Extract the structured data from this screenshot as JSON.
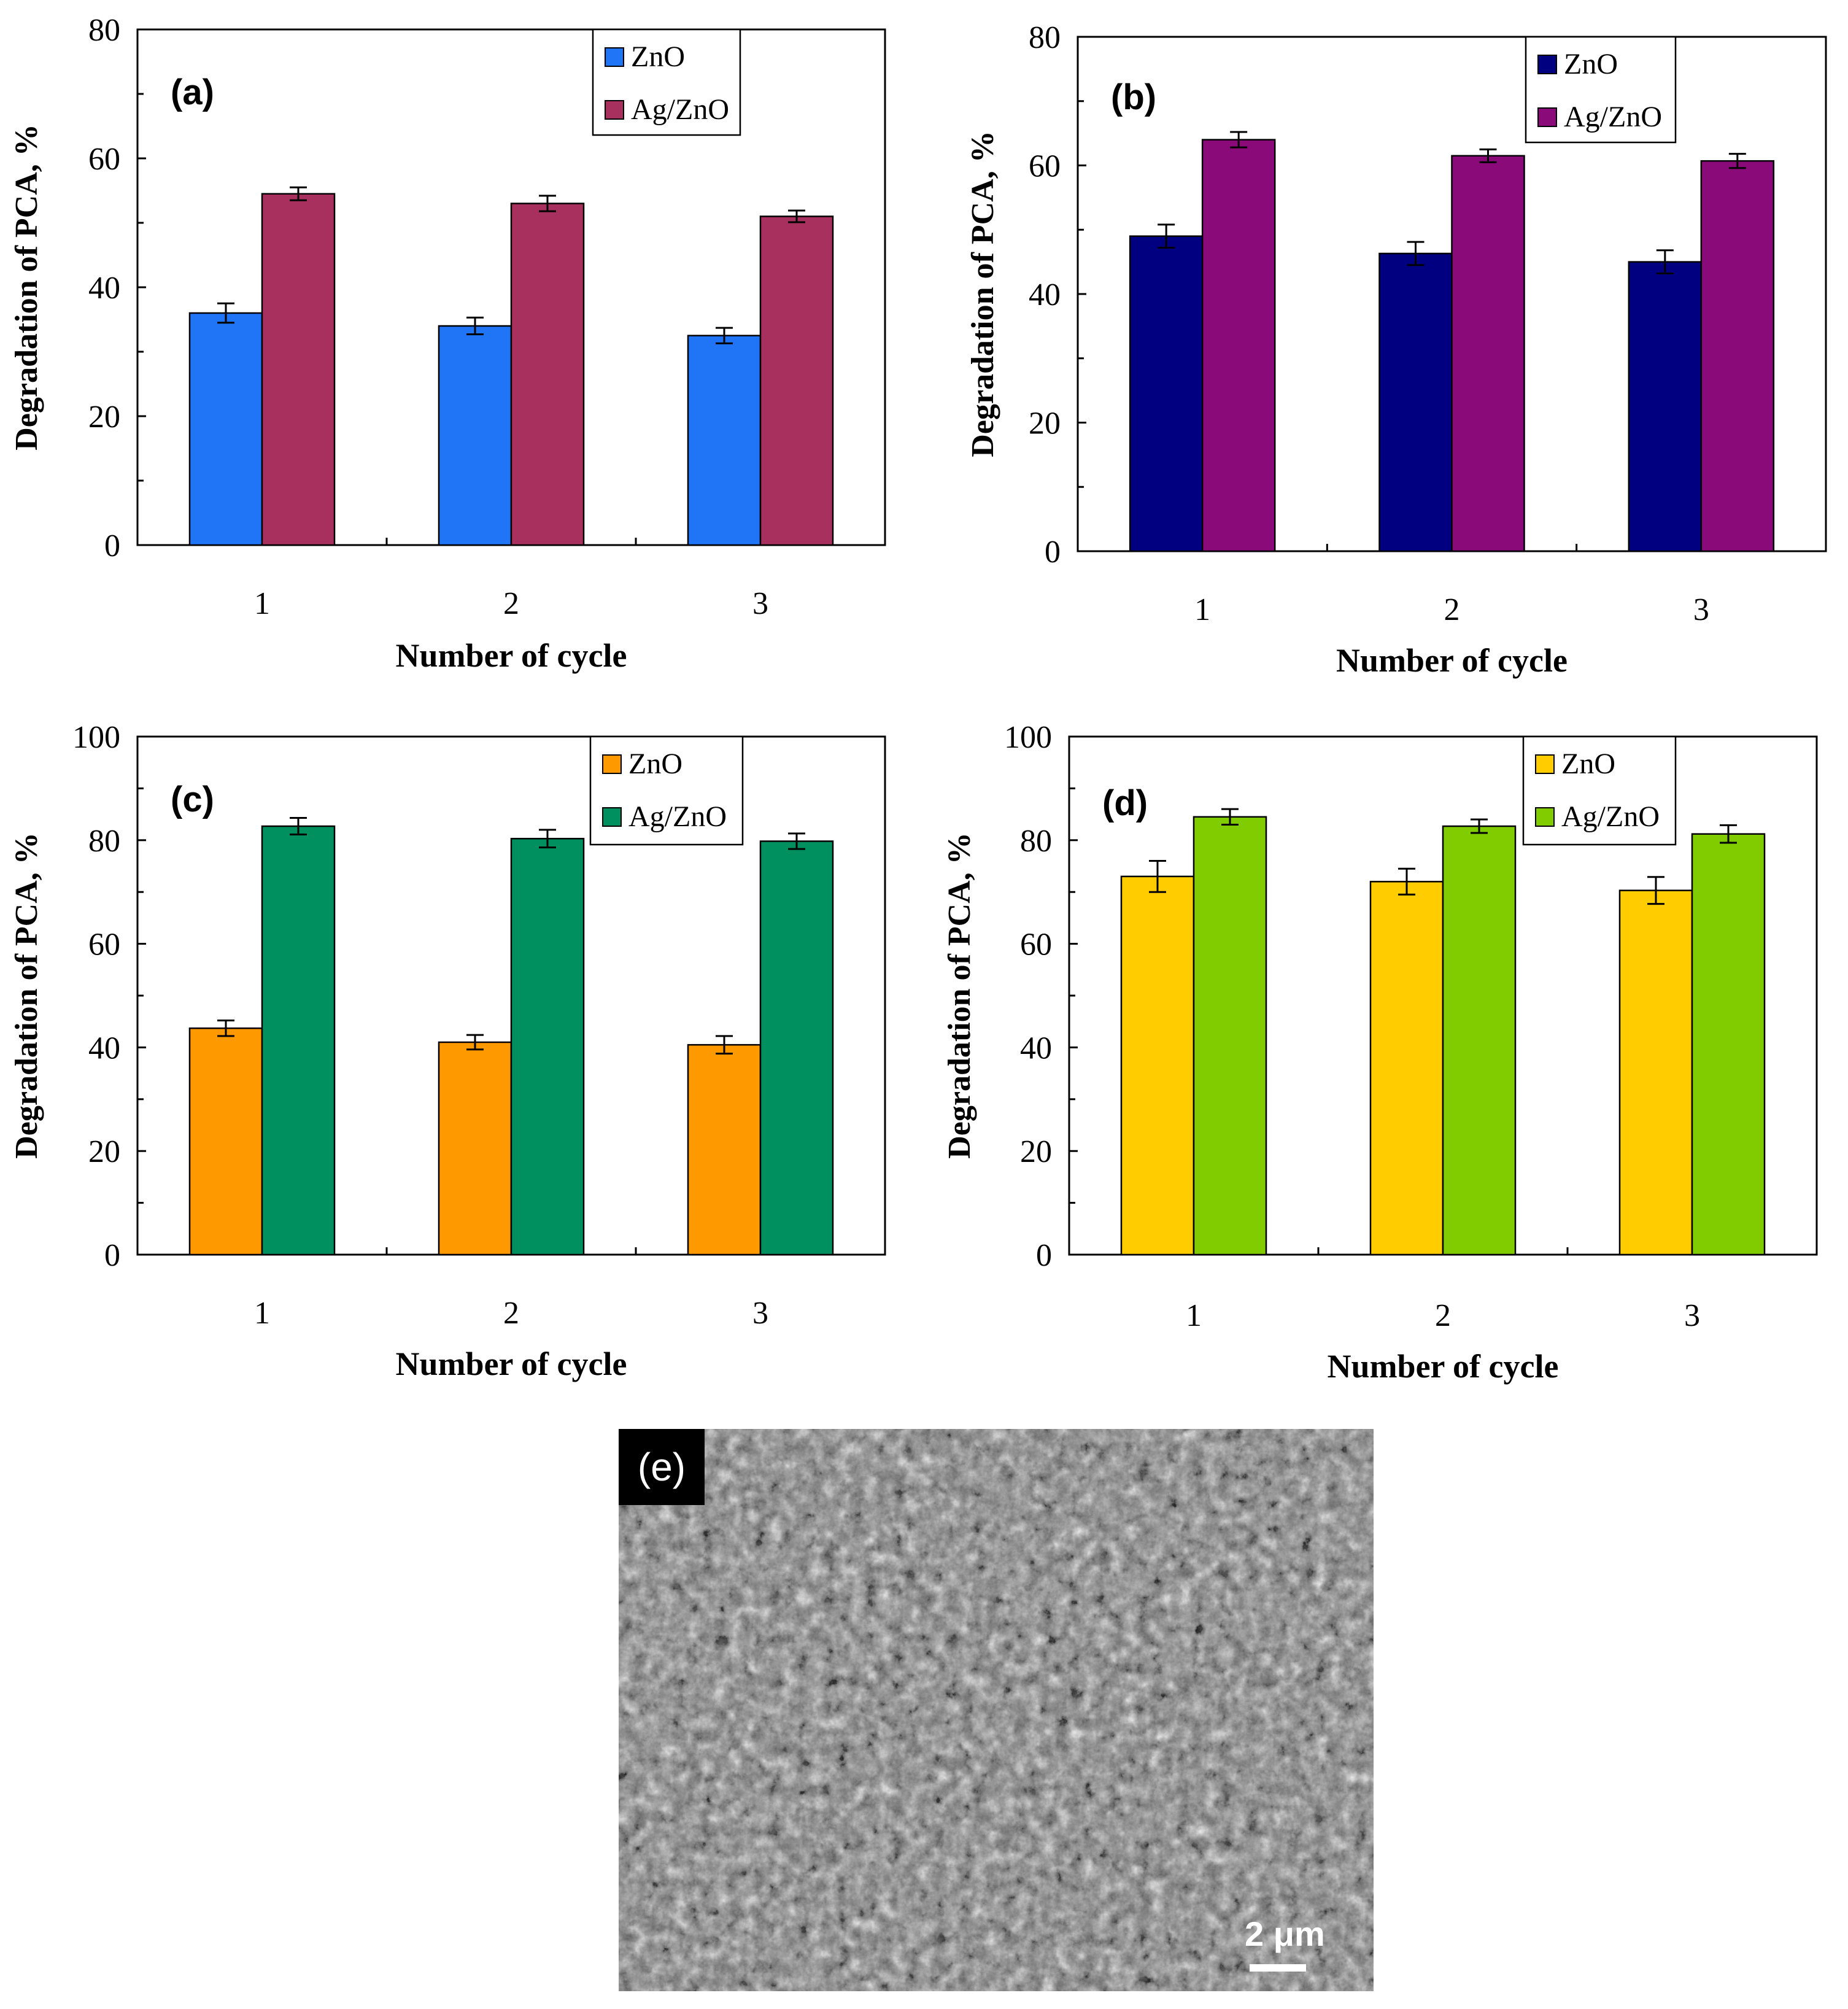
{
  "colors": {
    "a_zno": "#1f75f5",
    "a_agzno": "#a8305f",
    "b_zno": "#000080",
    "b_agzno": "#8b0a7a",
    "c_zno": "#ff9900",
    "c_agzno": "#009060",
    "d_zno": "#ffcc00",
    "d_agzno": "#80cc00"
  },
  "chart_data": [
    {
      "type": "bar",
      "panel_label": "(a)",
      "categories": [
        "1",
        "2",
        "3"
      ],
      "series": [
        {
          "name": "ZnO",
          "values": [
            36,
            34,
            32.5
          ],
          "errors": [
            1.5,
            1.3,
            1.2
          ],
          "color_key": "a_zno"
        },
        {
          "name": "Ag/ZnO",
          "values": [
            54.5,
            53,
            51
          ],
          "errors": [
            1.0,
            1.2,
            0.9
          ],
          "color_key": "a_agzno"
        }
      ],
      "xlabel": "Number of cycle",
      "ylabel": "Degradation of PCA, %",
      "ylim": [
        0,
        80
      ],
      "yticks": [
        "0",
        "20",
        "40",
        "60",
        "80"
      ],
      "legend_position": "top-right"
    },
    {
      "type": "bar",
      "panel_label": "(b)",
      "categories": [
        "1",
        "2",
        "3"
      ],
      "series": [
        {
          "name": "ZnO",
          "values": [
            49,
            46.3,
            45
          ],
          "errors": [
            1.8,
            1.8,
            1.8
          ],
          "color_key": "b_zno"
        },
        {
          "name": "Ag/ZnO",
          "values": [
            64,
            61.5,
            60.7
          ],
          "errors": [
            1.2,
            1.0,
            1.1
          ],
          "color_key": "b_agzno"
        }
      ],
      "xlabel": "Number of cycle",
      "ylabel": "Degradation of PCA, %",
      "ylim": [
        0,
        80
      ],
      "yticks": [
        "0",
        "20",
        "40",
        "60",
        "80"
      ],
      "legend_position": "top-right"
    },
    {
      "type": "bar",
      "panel_label": "(c)",
      "categories": [
        "1",
        "2",
        "3"
      ],
      "series": [
        {
          "name": "ZnO",
          "values": [
            43.7,
            41,
            40.5
          ],
          "errors": [
            1.5,
            1.4,
            1.7
          ],
          "color_key": "c_zno"
        },
        {
          "name": "Ag/ZnO",
          "values": [
            82.7,
            80.3,
            79.8
          ],
          "errors": [
            1.6,
            1.7,
            1.5
          ],
          "color_key": "c_agzno"
        }
      ],
      "xlabel": "Number of cycle",
      "ylabel": "Degradation of PCA, %",
      "ylim": [
        0,
        100
      ],
      "yticks": [
        "0",
        "20",
        "40",
        "60",
        "80",
        "100"
      ],
      "legend_position": "top-right"
    },
    {
      "type": "bar",
      "panel_label": "(d)",
      "categories": [
        "1",
        "2",
        "3"
      ],
      "series": [
        {
          "name": "ZnO",
          "values": [
            73,
            72,
            70.3
          ],
          "errors": [
            3.0,
            2.5,
            2.6
          ],
          "color_key": "d_zno"
        },
        {
          "name": "Ag/ZnO",
          "values": [
            84.5,
            82.7,
            81.2
          ],
          "errors": [
            1.5,
            1.3,
            1.7
          ],
          "color_key": "d_agzno"
        }
      ],
      "xlabel": "Number of cycle",
      "ylabel": "Degradation of PCA, %",
      "ylim": [
        0,
        100
      ],
      "yticks": [
        "0",
        "20",
        "40",
        "60",
        "80",
        "100"
      ],
      "legend_position": "top-right"
    }
  ],
  "sem": {
    "panel_label": "(e)",
    "scale_label": "2 μm"
  }
}
